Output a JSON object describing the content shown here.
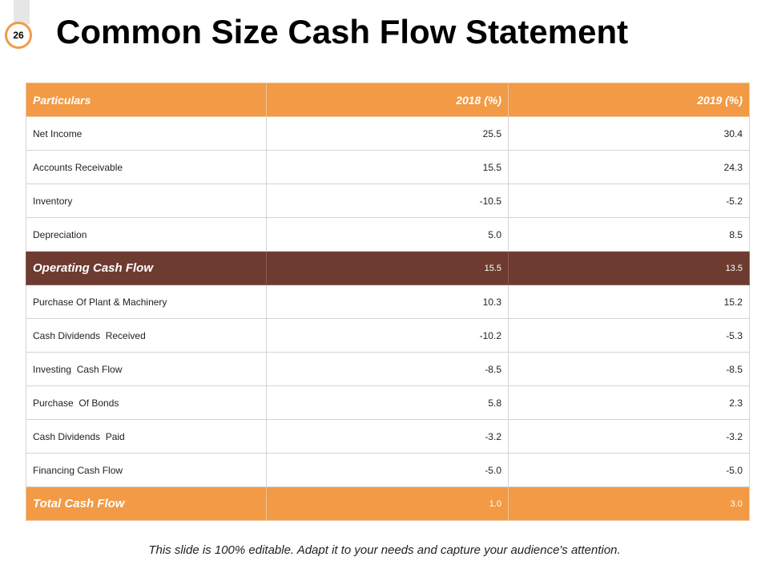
{
  "slide": {
    "number": "26",
    "title": "Common Size Cash Flow Statement",
    "footer": "This slide is 100% editable. Adapt it to your needs and capture your audience's attention."
  },
  "colors": {
    "accent_orange": "#f29a45",
    "highlight_brown": "#6e3b30"
  },
  "table": {
    "headers": [
      "Particulars",
      "2018 (%)",
      "2019 (%)"
    ],
    "rows": [
      {
        "label": "Net Income",
        "y2018": "25.5",
        "y2019": "30.4"
      },
      {
        "label": "Accounts Receivable",
        "y2018": "15.5",
        "y2019": "24.3"
      },
      {
        "label": "Inventory",
        "y2018": "-10.5",
        "y2019": "-5.2"
      },
      {
        "label": "Depreciation",
        "y2018": "5.0",
        "y2019": "8.5"
      },
      {
        "label": "Operating Cash Flow",
        "y2018": "15.5",
        "y2019": "13.5"
      },
      {
        "label": "Purchase Of Plant & Machinery",
        "y2018": "10.3",
        "y2019": "15.2"
      },
      {
        "label": "Cash Dividends  Received",
        "y2018": "-10.2",
        "y2019": "-5.3"
      },
      {
        "label": "Investing  Cash Flow",
        "y2018": "-8.5",
        "y2019": "-8.5"
      },
      {
        "label": "Purchase  Of Bonds",
        "y2018": "5.8",
        "y2019": "2.3"
      },
      {
        "label": "Cash Dividends  Paid",
        "y2018": "-3.2",
        "y2019": "-3.2"
      },
      {
        "label": "Financing Cash Flow",
        "y2018": "-5.0",
        "y2019": "-5.0"
      },
      {
        "label": "Total Cash Flow",
        "y2018": "1.0",
        "y2019": "3.0"
      }
    ]
  }
}
